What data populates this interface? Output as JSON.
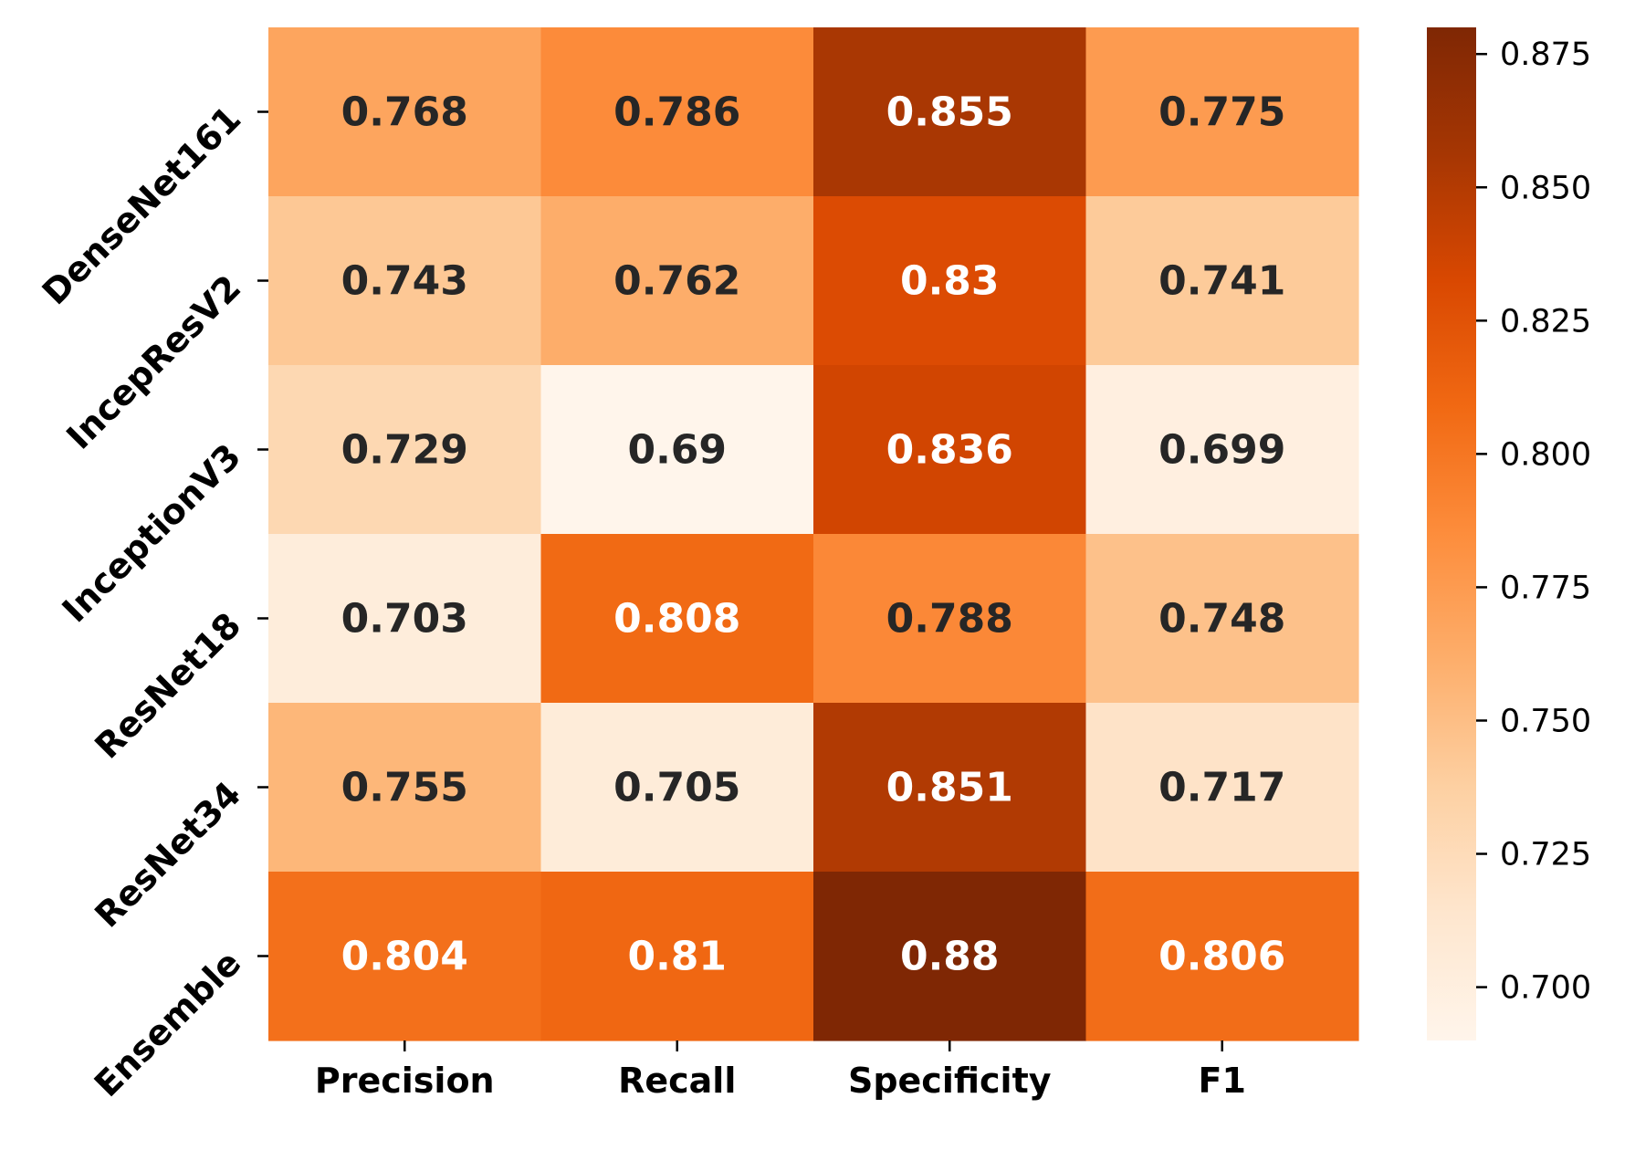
{
  "chart_data": {
    "type": "heatmap",
    "title": "",
    "xlabel": "",
    "ylabel": "",
    "columns": [
      "Precision",
      "Recall",
      "Specificity",
      "F1"
    ],
    "rows": [
      "DenseNet161",
      "IncepResV2",
      "InceptionV3",
      "ResNet18",
      "ResNet34",
      "Ensemble"
    ],
    "values": [
      [
        0.768,
        0.786,
        0.855,
        0.775
      ],
      [
        0.743,
        0.762,
        0.83,
        0.741
      ],
      [
        0.729,
        0.69,
        0.836,
        0.699
      ],
      [
        0.703,
        0.808,
        0.788,
        0.748
      ],
      [
        0.755,
        0.705,
        0.851,
        0.717
      ],
      [
        0.804,
        0.81,
        0.88,
        0.806
      ]
    ],
    "colormap": "Oranges",
    "color_range": [
      0.69,
      0.88
    ],
    "colorbar": {
      "ticks": [
        0.7,
        0.725,
        0.75,
        0.775,
        0.8,
        0.825,
        0.85,
        0.875
      ],
      "tick_labels": [
        "0.700",
        "0.725",
        "0.750",
        "0.775",
        "0.800",
        "0.825",
        "0.850",
        "0.875"
      ],
      "position": "right"
    },
    "annotations": true,
    "grid": false
  }
}
